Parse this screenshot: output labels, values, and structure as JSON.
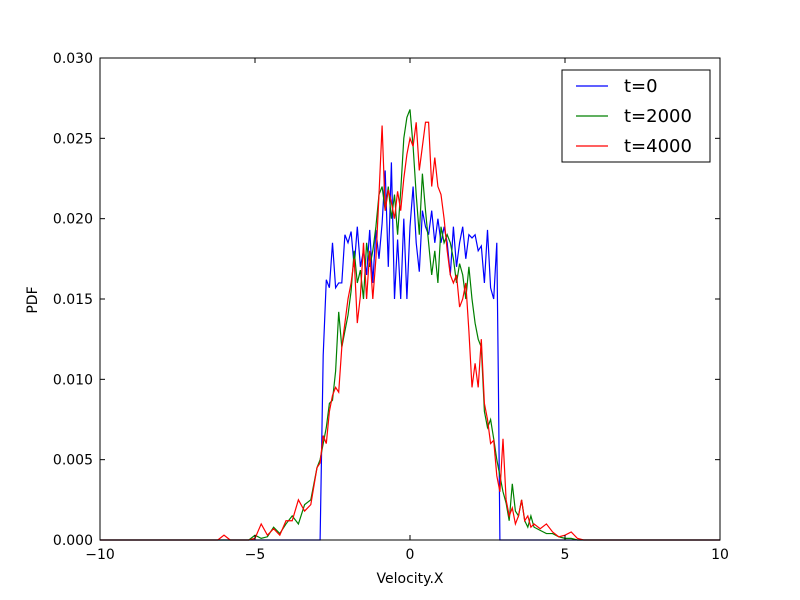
{
  "chart_data": {
    "type": "line",
    "title": "",
    "xlabel": "Velocity.X",
    "ylabel": "PDF",
    "xlim": [
      -10,
      10
    ],
    "ylim": [
      0,
      0.03
    ],
    "xticks": [
      -10,
      -5,
      0,
      5,
      10
    ],
    "xtick_labels": [
      "−10",
      "−5",
      "0",
      "5",
      "10"
    ],
    "yticks": [
      0,
      0.005,
      0.01,
      0.015,
      0.02,
      0.025,
      0.03
    ],
    "ytick_labels": [
      "0.000",
      "0.005",
      "0.010",
      "0.015",
      "0.020",
      "0.025",
      "0.030"
    ],
    "grid": false,
    "legend_position": "top-right",
    "series": [
      {
        "name": "t=0",
        "color": "#0000ff",
        "points": [
          [
            -10,
            0
          ],
          [
            -3.1,
            0
          ],
          [
            -2.9,
            0
          ],
          [
            -2.8,
            0.0115
          ],
          [
            -2.7,
            0.0162
          ],
          [
            -2.6,
            0.0157
          ],
          [
            -2.5,
            0.0185
          ],
          [
            -2.4,
            0.0157
          ],
          [
            -2.3,
            0.016
          ],
          [
            -2.2,
            0.016
          ],
          [
            -2.1,
            0.019
          ],
          [
            -2.0,
            0.0185
          ],
          [
            -1.9,
            0.0192
          ],
          [
            -1.8,
            0.017
          ],
          [
            -1.7,
            0.0195
          ],
          [
            -1.6,
            0.017
          ],
          [
            -1.5,
            0.018
          ],
          [
            -1.4,
            0.0165
          ],
          [
            -1.3,
            0.0193
          ],
          [
            -1.2,
            0.016
          ],
          [
            -1.1,
            0.0193
          ],
          [
            -1.0,
            0.0175
          ],
          [
            -0.9,
            0.0197
          ],
          [
            -0.8,
            0.023
          ],
          [
            -0.7,
            0.017
          ],
          [
            -0.6,
            0.0235
          ],
          [
            -0.5,
            0.015
          ],
          [
            -0.4,
            0.0187
          ],
          [
            -0.3,
            0.015
          ],
          [
            -0.2,
            0.02
          ],
          [
            -0.1,
            0.015
          ],
          [
            0.0,
            0.0195
          ],
          [
            0.1,
            0.022
          ],
          [
            0.2,
            0.0185
          ],
          [
            0.3,
            0.0167
          ],
          [
            0.4,
            0.0205
          ],
          [
            0.5,
            0.0195
          ],
          [
            0.6,
            0.019
          ],
          [
            0.7,
            0.0205
          ],
          [
            0.8,
            0.0185
          ],
          [
            0.9,
            0.02
          ],
          [
            1.0,
            0.0185
          ],
          [
            1.1,
            0.0195
          ],
          [
            1.2,
            0.0185
          ],
          [
            1.3,
            0.0165
          ],
          [
            1.4,
            0.0195
          ],
          [
            1.5,
            0.017
          ],
          [
            1.6,
            0.0185
          ],
          [
            1.7,
            0.0195
          ],
          [
            1.8,
            0.0175
          ],
          [
            1.9,
            0.019
          ],
          [
            2.0,
            0.0188
          ],
          [
            2.1,
            0.019
          ],
          [
            2.2,
            0.018
          ],
          [
            2.3,
            0.0183
          ],
          [
            2.4,
            0.016
          ],
          [
            2.5,
            0.0193
          ],
          [
            2.6,
            0.0157
          ],
          [
            2.7,
            0.015
          ],
          [
            2.8,
            0.0185
          ],
          [
            2.85,
            0.01
          ],
          [
            2.9,
            0
          ],
          [
            3.1,
            0
          ],
          [
            10,
            0
          ]
        ]
      },
      {
        "name": "t=2000",
        "color": "#008000",
        "points": [
          [
            -10,
            0
          ],
          [
            -5.2,
            0
          ],
          [
            -5.0,
            0.0003
          ],
          [
            -4.8,
            0.0001
          ],
          [
            -4.6,
            0.0002
          ],
          [
            -4.4,
            0.0008
          ],
          [
            -4.2,
            0.0004
          ],
          [
            -4.0,
            0.001
          ],
          [
            -3.8,
            0.0015
          ],
          [
            -3.6,
            0.001
          ],
          [
            -3.4,
            0.0022
          ],
          [
            -3.2,
            0.0025
          ],
          [
            -3.0,
            0.0045
          ],
          [
            -2.9,
            0.005
          ],
          [
            -2.8,
            0.006
          ],
          [
            -2.7,
            0.007
          ],
          [
            -2.6,
            0.0085
          ],
          [
            -2.5,
            0.0087
          ],
          [
            -2.4,
            0.0105
          ],
          [
            -2.3,
            0.0142
          ],
          [
            -2.2,
            0.012
          ],
          [
            -2.1,
            0.013
          ],
          [
            -2.0,
            0.014
          ],
          [
            -1.9,
            0.0155
          ],
          [
            -1.8,
            0.018
          ],
          [
            -1.7,
            0.016
          ],
          [
            -1.6,
            0.0168
          ],
          [
            -1.5,
            0.015
          ],
          [
            -1.4,
            0.0185
          ],
          [
            -1.3,
            0.017
          ],
          [
            -1.2,
            0.018
          ],
          [
            -1.1,
            0.0195
          ],
          [
            -1.0,
            0.0215
          ],
          [
            -0.9,
            0.022
          ],
          [
            -0.8,
            0.0205
          ],
          [
            -0.7,
            0.022
          ],
          [
            -0.6,
            0.02
          ],
          [
            -0.5,
            0.0215
          ],
          [
            -0.4,
            0.019
          ],
          [
            -0.3,
            0.0217
          ],
          [
            -0.2,
            0.025
          ],
          [
            -0.1,
            0.0263
          ],
          [
            0.0,
            0.0268
          ],
          [
            0.1,
            0.0245
          ],
          [
            0.2,
            0.0215
          ],
          [
            0.3,
            0.019
          ],
          [
            0.4,
            0.0228
          ],
          [
            0.5,
            0.0205
          ],
          [
            0.6,
            0.0185
          ],
          [
            0.7,
            0.0165
          ],
          [
            0.8,
            0.018
          ],
          [
            0.9,
            0.016
          ],
          [
            1.0,
            0.0195
          ],
          [
            1.1,
            0.0185
          ],
          [
            1.2,
            0.019
          ],
          [
            1.3,
            0.0185
          ],
          [
            1.4,
            0.0175
          ],
          [
            1.5,
            0.016
          ],
          [
            1.6,
            0.0172
          ],
          [
            1.7,
            0.0165
          ],
          [
            1.8,
            0.015
          ],
          [
            1.9,
            0.017
          ],
          [
            2.0,
            0.015
          ],
          [
            2.1,
            0.0135
          ],
          [
            2.2,
            0.0125
          ],
          [
            2.3,
            0.012
          ],
          [
            2.4,
            0.008
          ],
          [
            2.5,
            0.007
          ],
          [
            2.6,
            0.0075
          ],
          [
            2.7,
            0.0063
          ],
          [
            2.8,
            0.005
          ],
          [
            2.9,
            0.004
          ],
          [
            3.0,
            0.003
          ],
          [
            3.1,
            0.0023
          ],
          [
            3.2,
            0.0012
          ],
          [
            3.3,
            0.0035
          ],
          [
            3.4,
            0.0018
          ],
          [
            3.5,
            0.0015
          ],
          [
            3.6,
            0.0025
          ],
          [
            3.7,
            0.0012
          ],
          [
            3.8,
            0.0008
          ],
          [
            3.9,
            0.0015
          ],
          [
            4.0,
            0.0008
          ],
          [
            4.2,
            0.0006
          ],
          [
            4.4,
            0.0004
          ],
          [
            4.6,
            0.0004
          ],
          [
            4.8,
            0.0002
          ],
          [
            5.0,
            0.0001
          ],
          [
            5.2,
            0.0001
          ],
          [
            5.4,
            0
          ],
          [
            10,
            0
          ]
        ]
      },
      {
        "name": "t=4000",
        "color": "#ff0000",
        "points": [
          [
            -10,
            0
          ],
          [
            -6.2,
            0
          ],
          [
            -6.0,
            0.0003
          ],
          [
            -5.8,
            0
          ],
          [
            -5.2,
            0
          ],
          [
            -5.0,
            0.0001
          ],
          [
            -4.8,
            0.001
          ],
          [
            -4.6,
            0.0003
          ],
          [
            -4.4,
            0.0007
          ],
          [
            -4.2,
            0.0003
          ],
          [
            -4.0,
            0.0012
          ],
          [
            -3.8,
            0.0012
          ],
          [
            -3.6,
            0.0025
          ],
          [
            -3.4,
            0.0018
          ],
          [
            -3.2,
            0.0022
          ],
          [
            -3.0,
            0.0045
          ],
          [
            -2.9,
            0.0048
          ],
          [
            -2.8,
            0.0065
          ],
          [
            -2.7,
            0.006
          ],
          [
            -2.6,
            0.008
          ],
          [
            -2.5,
            0.009
          ],
          [
            -2.4,
            0.0095
          ],
          [
            -2.3,
            0.0092
          ],
          [
            -2.2,
            0.012
          ],
          [
            -2.1,
            0.0135
          ],
          [
            -2.0,
            0.015
          ],
          [
            -1.9,
            0.016
          ],
          [
            -1.8,
            0.0175
          ],
          [
            -1.7,
            0.0135
          ],
          [
            -1.6,
            0.0152
          ],
          [
            -1.5,
            0.0185
          ],
          [
            -1.4,
            0.015
          ],
          [
            -1.3,
            0.018
          ],
          [
            -1.2,
            0.015
          ],
          [
            -1.1,
            0.0175
          ],
          [
            -1.0,
            0.0215
          ],
          [
            -0.9,
            0.0258
          ],
          [
            -0.8,
            0.0205
          ],
          [
            -0.7,
            0.0218
          ],
          [
            -0.6,
            0.021
          ],
          [
            -0.5,
            0.02
          ],
          [
            -0.4,
            0.0217
          ],
          [
            -0.3,
            0.0205
          ],
          [
            -0.2,
            0.0225
          ],
          [
            -0.1,
            0.024
          ],
          [
            0.0,
            0.025
          ],
          [
            0.1,
            0.0245
          ],
          [
            0.2,
            0.026
          ],
          [
            0.3,
            0.023
          ],
          [
            0.4,
            0.0245
          ],
          [
            0.5,
            0.026
          ],
          [
            0.6,
            0.026
          ],
          [
            0.7,
            0.022
          ],
          [
            0.8,
            0.0238
          ],
          [
            0.9,
            0.022
          ],
          [
            1.0,
            0.0215
          ],
          [
            1.1,
            0.02
          ],
          [
            1.2,
            0.018
          ],
          [
            1.3,
            0.0165
          ],
          [
            1.4,
            0.016
          ],
          [
            1.5,
            0.0165
          ],
          [
            1.6,
            0.0145
          ],
          [
            1.7,
            0.015
          ],
          [
            1.8,
            0.016
          ],
          [
            1.9,
            0.013
          ],
          [
            2.0,
            0.0095
          ],
          [
            2.1,
            0.011
          ],
          [
            2.2,
            0.0095
          ],
          [
            2.3,
            0.0125
          ],
          [
            2.4,
            0.0085
          ],
          [
            2.5,
            0.0075
          ],
          [
            2.6,
            0.006
          ],
          [
            2.7,
            0.0062
          ],
          [
            2.8,
            0.004
          ],
          [
            2.9,
            0.003
          ],
          [
            3.0,
            0.0063
          ],
          [
            3.1,
            0.0025
          ],
          [
            3.2,
            0.0015
          ],
          [
            3.3,
            0.002
          ],
          [
            3.4,
            0.001
          ],
          [
            3.5,
            0.0015
          ],
          [
            3.6,
            0.0025
          ],
          [
            3.7,
            0.0012
          ],
          [
            3.8,
            0.0015
          ],
          [
            3.9,
            0.0008
          ],
          [
            4.0,
            0.001
          ],
          [
            4.2,
            0.0007
          ],
          [
            4.4,
            0.001
          ],
          [
            4.6,
            0.0005
          ],
          [
            4.8,
            0.0002
          ],
          [
            5.0,
            0.0003
          ],
          [
            5.2,
            0.0005
          ],
          [
            5.4,
            0.0001
          ],
          [
            5.6,
            0
          ],
          [
            10,
            0
          ]
        ]
      }
    ]
  }
}
